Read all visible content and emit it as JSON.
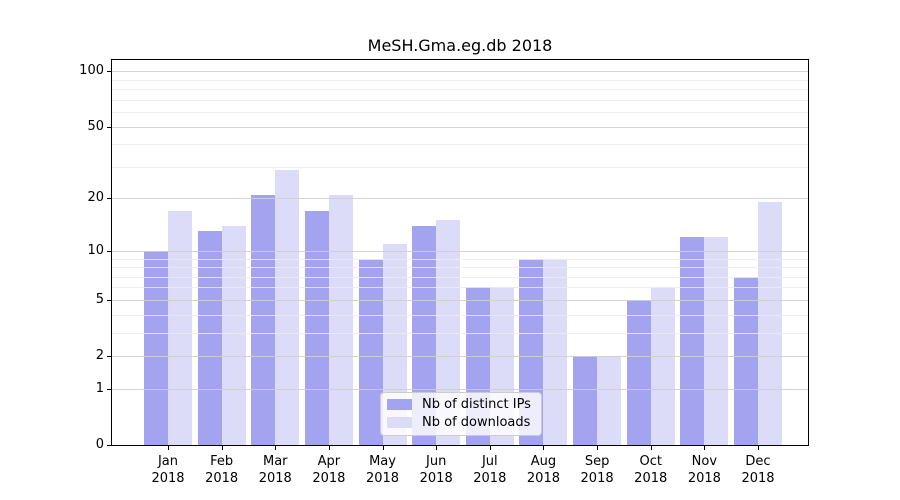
{
  "chart_data": {
    "type": "bar",
    "title": "MeSH.Gma.eg.db 2018",
    "categories": [
      "Jan",
      "Feb",
      "Mar",
      "Apr",
      "May",
      "Jun",
      "Jul",
      "Aug",
      "Sep",
      "Oct",
      "Nov",
      "Dec"
    ],
    "year_label": "2018",
    "series": [
      {
        "name": "Nb of distinct IPs",
        "color": "#a3a3f0",
        "values": [
          10,
          13,
          21,
          17,
          9,
          14,
          6,
          9,
          2,
          5,
          12,
          7
        ]
      },
      {
        "name": "Nb of downloads",
        "color": "#dcdcf9",
        "values": [
          17,
          14,
          29,
          21,
          11,
          15,
          6,
          9,
          2,
          6,
          12,
          19
        ]
      }
    ],
    "y_axis": {
      "scale": "log1p",
      "major_ticks": [
        0,
        1,
        2,
        5,
        10,
        20,
        50,
        100
      ],
      "minor_gridlines": [
        3,
        4,
        6,
        7,
        8,
        9,
        30,
        40,
        60,
        70,
        80,
        90
      ],
      "ylim": [
        0,
        115
      ]
    },
    "legend": {
      "position": "lower center",
      "entries": [
        "Nb of distinct IPs",
        "Nb of downloads"
      ]
    },
    "grid": true,
    "colors": {
      "major_grid": "#cfcfcf",
      "minor_grid": "#ececec",
      "axis": "#000000",
      "background": "#ffffff",
      "text": "#000000"
    }
  }
}
